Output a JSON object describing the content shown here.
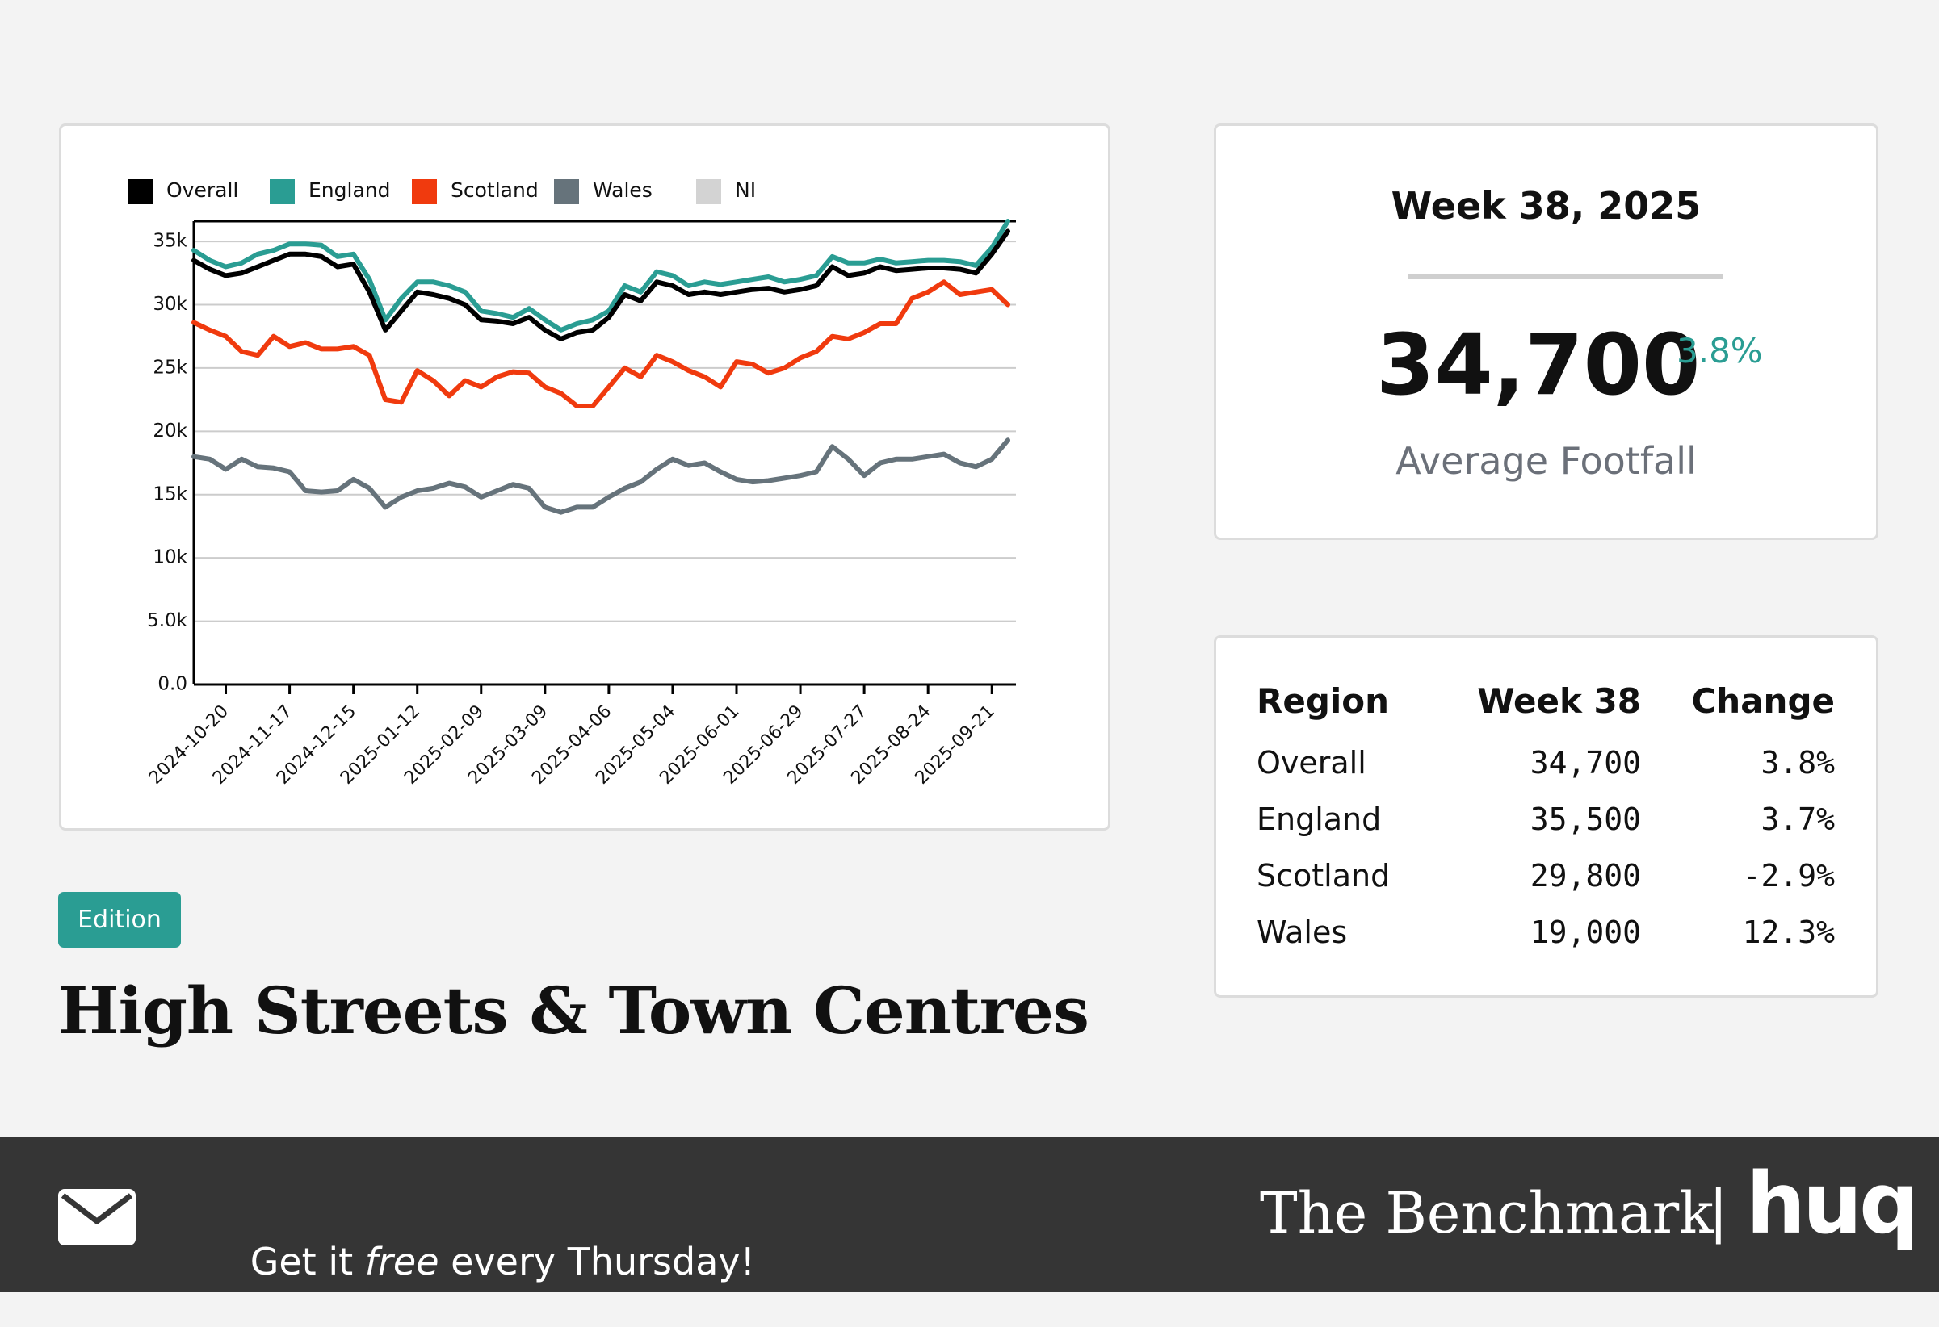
{
  "chart_data": {
    "type": "line",
    "x": [
      "2024-10-06",
      "2024-10-13",
      "2024-10-20",
      "2024-10-27",
      "2024-11-03",
      "2024-11-10",
      "2024-11-17",
      "2024-11-24",
      "2024-12-01",
      "2024-12-08",
      "2024-12-15",
      "2024-12-22",
      "2024-12-29",
      "2025-01-05",
      "2025-01-12",
      "2025-01-19",
      "2025-01-26",
      "2025-02-02",
      "2025-02-09",
      "2025-02-16",
      "2025-02-23",
      "2025-03-02",
      "2025-03-09",
      "2025-03-16",
      "2025-03-23",
      "2025-03-30",
      "2025-04-06",
      "2025-04-13",
      "2025-04-20",
      "2025-04-27",
      "2025-05-04",
      "2025-05-11",
      "2025-05-18",
      "2025-05-25",
      "2025-06-01",
      "2025-06-08",
      "2025-06-15",
      "2025-06-22",
      "2025-06-29",
      "2025-07-06",
      "2025-07-13",
      "2025-07-20",
      "2025-07-27",
      "2025-08-03",
      "2025-08-10",
      "2025-08-17",
      "2025-08-24",
      "2025-08-31",
      "2025-09-07",
      "2025-09-14",
      "2025-09-21",
      "2025-09-28"
    ],
    "series": [
      {
        "name": "Overall",
        "color": "#000000",
        "values": [
          33500,
          32800,
          32300,
          32500,
          33000,
          33500,
          34000,
          34000,
          33800,
          33000,
          33200,
          31000,
          28000,
          29500,
          31000,
          30800,
          30500,
          30000,
          28800,
          28700,
          28500,
          29000,
          28000,
          27300,
          27800,
          28000,
          29000,
          30800,
          30300,
          31800,
          31500,
          30800,
          31000,
          30800,
          31000,
          31200,
          31300,
          31000,
          31200,
          31500,
          33000,
          32300,
          32500,
          33000,
          32700,
          32800,
          32900,
          32900,
          32800,
          32500,
          34000,
          35800
        ]
      },
      {
        "name": "England",
        "color": "#2a9d93",
        "values": [
          34300,
          33500,
          33000,
          33300,
          34000,
          34300,
          34800,
          34800,
          34700,
          33800,
          34000,
          32000,
          28800,
          30500,
          31800,
          31800,
          31500,
          31000,
          29500,
          29300,
          29000,
          29700,
          28800,
          28000,
          28500,
          28800,
          29500,
          31500,
          31000,
          32600,
          32300,
          31500,
          31800,
          31600,
          31800,
          32000,
          32200,
          31800,
          32000,
          32300,
          33800,
          33300,
          33300,
          33600,
          33300,
          33400,
          33500,
          33500,
          33400,
          33100,
          34500,
          36600
        ]
      },
      {
        "name": "Scotland",
        "color": "#f03a0e",
        "values": [
          28600,
          28000,
          27500,
          26300,
          26000,
          27500,
          26700,
          27000,
          26500,
          26500,
          26700,
          26000,
          22500,
          22300,
          24800,
          24000,
          22800,
          24000,
          23500,
          24300,
          24700,
          24600,
          23500,
          23000,
          22000,
          22000,
          23500,
          25000,
          24300,
          26000,
          25500,
          24800,
          24300,
          23500,
          25500,
          25300,
          24600,
          25000,
          25800,
          26300,
          27500,
          27300,
          27800,
          28500,
          28500,
          30500,
          31000,
          31800,
          30800,
          31000,
          31200,
          30000
        ]
      },
      {
        "name": "Wales",
        "color": "#66737b",
        "values": [
          18000,
          17800,
          17000,
          17800,
          17200,
          17100,
          16800,
          15300,
          15200,
          15300,
          16200,
          15500,
          14000,
          14800,
          15300,
          15500,
          15900,
          15600,
          14800,
          15300,
          15800,
          15500,
          14000,
          13600,
          14000,
          14000,
          14800,
          15500,
          16000,
          17000,
          17800,
          17300,
          17500,
          16800,
          16200,
          16000,
          16100,
          16300,
          16500,
          16800,
          18800,
          17800,
          16500,
          17500,
          17800,
          17800,
          18000,
          18200,
          17500,
          17200,
          17800,
          19300
        ]
      },
      {
        "name": "NI",
        "color": "#d3d3d3",
        "values": [
          null,
          null,
          null,
          null,
          null,
          null,
          null,
          null,
          null,
          null,
          null,
          null,
          null,
          null,
          null,
          null,
          null,
          null,
          null,
          null,
          null,
          null,
          null,
          null,
          null,
          null,
          null,
          null,
          null,
          null,
          null,
          null,
          null,
          null,
          null,
          null,
          null,
          null,
          null,
          null,
          null,
          null,
          null,
          null,
          null,
          null,
          null,
          null,
          null,
          null,
          null,
          null
        ]
      }
    ],
    "xlim": [
      "2024-10-06",
      "2025-09-28"
    ],
    "xticks": [
      "2024-10-20",
      "2024-11-17",
      "2024-12-15",
      "2025-01-12",
      "2025-02-09",
      "2025-03-09",
      "2025-04-06",
      "2025-05-04",
      "2025-06-01",
      "2025-06-29",
      "2025-07-27",
      "2025-08-24",
      "2025-09-21"
    ],
    "ylim": [
      0,
      36600
    ],
    "yticks": [
      {
        "value": 0,
        "label": "0.0"
      },
      {
        "value": 5000,
        "label": "5.0k"
      },
      {
        "value": 10000,
        "label": "10k"
      },
      {
        "value": 15000,
        "label": "15k"
      },
      {
        "value": 20000,
        "label": "20k"
      },
      {
        "value": 25000,
        "label": "25k"
      },
      {
        "value": 30000,
        "label": "30k"
      },
      {
        "value": 35000,
        "label": "35k"
      }
    ],
    "grid": true,
    "legend": "top"
  },
  "summary": {
    "week": "Week 38, 2025",
    "value": "34,700",
    "change": "3.8%",
    "label": "Average Footfall"
  },
  "table": {
    "header": [
      "Region",
      "Week 38",
      "Change"
    ],
    "rows": [
      [
        "Overall",
        "34,700",
        "3.8%"
      ],
      [
        "England",
        "35,500",
        "3.7%"
      ],
      [
        "Scotland",
        "29,800",
        "-2.9%"
      ],
      [
        "Wales",
        "19,000",
        "12.3%"
      ]
    ]
  },
  "badge": "Edition",
  "title": "High Streets & Town Centres",
  "footer": {
    "cta": [
      "Get it ",
      "free",
      " every Thursday!"
    ],
    "brand": "The Benchmark",
    "separator": "|",
    "logo": "huq"
  }
}
